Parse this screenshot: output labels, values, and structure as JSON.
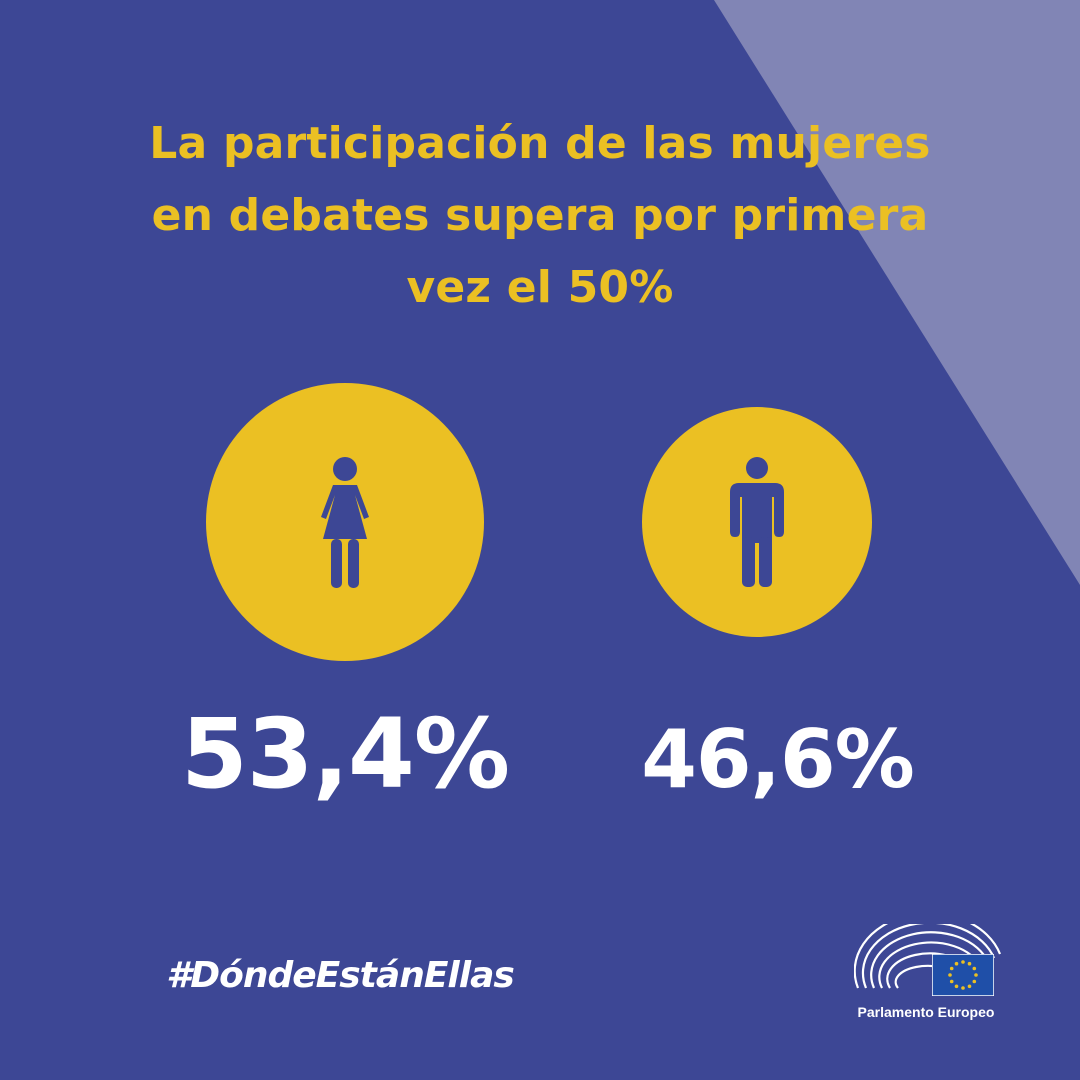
{
  "title_lines": [
    "La participación de las mujeres",
    "en debates supera por primera",
    "vez el 50%"
  ],
  "stats": {
    "women": {
      "icon": "woman-icon",
      "value": "53,4%"
    },
    "men": {
      "icon": "man-icon",
      "value": "46,6%"
    }
  },
  "hashtag": "#DóndeEstánEllas",
  "logo": {
    "name": "Parlamento Europeo",
    "icon": "eu-flag-icon"
  },
  "colors": {
    "background": "#3d4795",
    "accent": "#ebc023",
    "wedge": "#8185b5",
    "text": "#ffffff"
  }
}
